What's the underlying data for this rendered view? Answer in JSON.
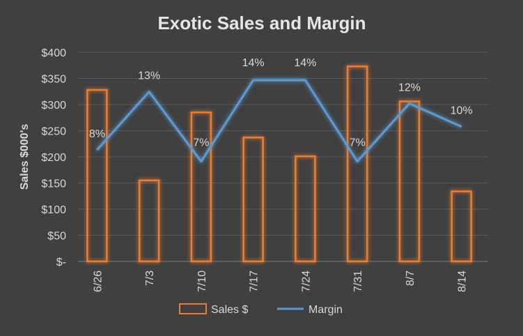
{
  "chart_data": {
    "type": "bar",
    "title": "Exotic Sales and Margin",
    "ylabel": "Sales $000's",
    "xlabel": "",
    "categories": [
      "6/26",
      "7/3",
      "7/10",
      "7/17",
      "7/24",
      "7/31",
      "8/7",
      "8/14"
    ],
    "ylim": [
      0,
      400
    ],
    "yticks": [
      0,
      50,
      100,
      150,
      200,
      250,
      300,
      350,
      400
    ],
    "ytick_labels": [
      "$-",
      "$50",
      "$100",
      "$150",
      "$200",
      "$250",
      "$300",
      "$350",
      "$400"
    ],
    "series": [
      {
        "name": "Sales $",
        "type": "bar",
        "values": [
          328,
          155,
          285,
          237,
          201,
          373,
          306,
          134
        ],
        "color": "#ed7d31"
      },
      {
        "name": "Margin",
        "type": "line",
        "values": [
          8,
          13,
          7,
          14,
          14,
          7,
          12,
          10
        ],
        "labels": [
          "8%",
          "13%",
          "7%",
          "14%",
          "14%",
          "7%",
          "12%",
          "10%"
        ],
        "color": "#5b9bd5"
      }
    ],
    "grid": true,
    "legend_position": "bottom",
    "background": "#404040"
  }
}
